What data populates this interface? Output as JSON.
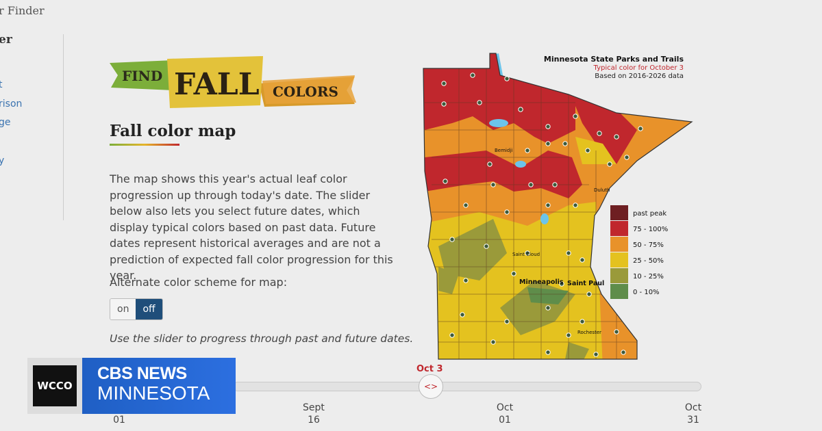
{
  "header": {
    "site_title": "r Finder"
  },
  "sidebar": {
    "heading": "er",
    "links": [
      "t",
      "rison",
      "ge",
      "y"
    ]
  },
  "banner": {
    "find": "FIND",
    "fall": "FALL",
    "colors": "COLORS"
  },
  "heading": "Fall color map",
  "description": "The map shows this year's actual leaf color progression up through today's date. The slider below also lets you select future dates, which display typical colors based on past data. Future dates represent historical averages and are not a prediction of expected fall color progression for this year.",
  "alt_scheme": {
    "label": "Alternate color scheme for map:",
    "options": [
      "on",
      "off"
    ],
    "selected": "off"
  },
  "slider_note": "Use the slider to progress through past and future dates.",
  "map": {
    "title": "Minnesota State Parks and Trails",
    "subtitle": "Typical color for October 3",
    "source": "Based on 2016-2026 data",
    "cities": [
      "Bemidji",
      "Duluth",
      "Saint Cloud",
      "Minneapolis",
      "Saint Paul",
      "Rochester"
    ],
    "legend": [
      {
        "label": "past peak",
        "color": "#6e1f22"
      },
      {
        "label": "75 - 100%",
        "color": "#c0272d"
      },
      {
        "label": "50 - 75%",
        "color": "#e8922a"
      },
      {
        "label": "25 - 50%",
        "color": "#e4c21f"
      },
      {
        "label": "10 - 25%",
        "color": "#9a9a3a"
      },
      {
        "label": "0 - 10%",
        "color": "#5f8d4a"
      }
    ]
  },
  "slider": {
    "current": "Oct 3",
    "ticks": [
      [
        "01"
      ],
      [
        "Sept",
        "16"
      ],
      [
        "Oct",
        "01"
      ],
      [
        "Oct",
        "31"
      ]
    ]
  },
  "logo": {
    "station": "WCCO",
    "network": "CBS NEWS",
    "region": "MINNESOTA"
  }
}
